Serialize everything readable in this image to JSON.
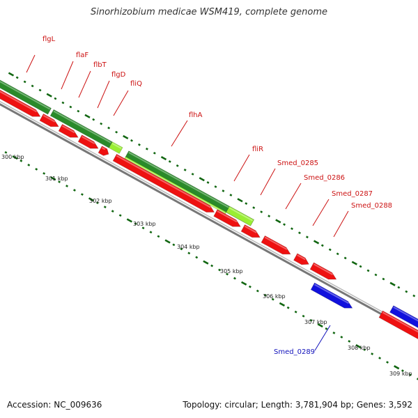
{
  "title": "Sinorhizobium medicae WSM419, complete genome",
  "accession": "Accession: NC_009636",
  "summary": "Topology: circular; Length: 3,781,904 bp; Genes: 3,592",
  "colors": {
    "cds_forward": "#ee1111",
    "cds_reverse": "#1111dd",
    "cog_dark": "#2a8a2a",
    "cog_light": "#99ee33",
    "backbone": "#888888",
    "dots": "#116611"
  },
  "gene_labels": [
    {
      "name": "flgL",
      "color": "red"
    },
    {
      "name": "flaF",
      "color": "red"
    },
    {
      "name": "flbT",
      "color": "red"
    },
    {
      "name": "flgD",
      "color": "red"
    },
    {
      "name": "fliQ",
      "color": "red"
    },
    {
      "name": "flhA",
      "color": "red"
    },
    {
      "name": "fliR",
      "color": "red"
    },
    {
      "name": "Smed_0285",
      "color": "red"
    },
    {
      "name": "Smed_0286",
      "color": "red"
    },
    {
      "name": "Smed_0287",
      "color": "red"
    },
    {
      "name": "Smed_0288",
      "color": "red"
    },
    {
      "name": "Smed_0289",
      "color": "blue"
    }
  ],
  "ticks": [
    "300 kbp",
    "301 kbp",
    "302 kbp",
    "303 kbp",
    "304 kbp",
    "305 kbp",
    "306 kbp",
    "307 kbp",
    "308 kbp",
    "309 kbp"
  ]
}
